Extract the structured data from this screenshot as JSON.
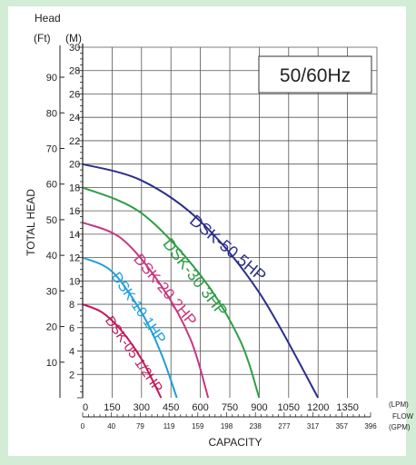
{
  "chart_data": {
    "type": "line",
    "title": "",
    "badge": "50/60Hz",
    "head_label": "Head",
    "ft_unit": "(Ft)",
    "m_unit": "(M)",
    "ylabel": "TOTAL HEAD",
    "xlabel": "CAPACITY",
    "flow_label": "FLOW",
    "lpm_unit": "(LPM)",
    "gpm_unit": "(GPM)",
    "xlim": [
      0,
      1500
    ],
    "ylim": [
      0,
      30
    ],
    "grid": true,
    "m_ticks": [
      2,
      4,
      6,
      8,
      10,
      12,
      14,
      16,
      18,
      20,
      22,
      24,
      26,
      28,
      30
    ],
    "ft_ticks": [
      10,
      20,
      30,
      40,
      50,
      60,
      70,
      80,
      90
    ],
    "lpm_ticks": [
      "0",
      "150",
      "300",
      "450",
      "600",
      "750",
      "900",
      "1050",
      "1200",
      "1350"
    ],
    "gpm_ticks": [
      "0",
      "40",
      "79",
      "119",
      "159",
      "198",
      "238",
      "277",
      "317",
      "357",
      "396"
    ],
    "series": [
      {
        "name": "DSK-05 1/2HP",
        "color": "#c2185b",
        "x": [
          0,
          100,
          200,
          300,
          400
        ],
        "y": [
          8,
          7.3,
          5.7,
          3.3,
          0
        ]
      },
      {
        "name": "DSK-10 1HP",
        "color": "#1e9fd8",
        "x": [
          0,
          150,
          300,
          400,
          480
        ],
        "y": [
          12,
          10.8,
          7.3,
          3.8,
          0
        ]
      },
      {
        "name": "DSK-20 2HP",
        "color": "#c9357f",
        "x": [
          0,
          200,
          400,
          550,
          640
        ],
        "y": [
          15,
          13.6,
          9.6,
          5,
          0
        ]
      },
      {
        "name": "DSK-30 3HP",
        "color": "#2e9e45",
        "x": [
          0,
          300,
          600,
          800,
          900
        ],
        "y": [
          18,
          15.8,
          10.5,
          5,
          0
        ]
      },
      {
        "name": "DSK-50 5HP",
        "color": "#2b2f8c",
        "x": [
          0,
          300,
          600,
          900,
          1200
        ],
        "y": [
          20,
          18.6,
          15.1,
          9,
          0
        ]
      }
    ]
  }
}
